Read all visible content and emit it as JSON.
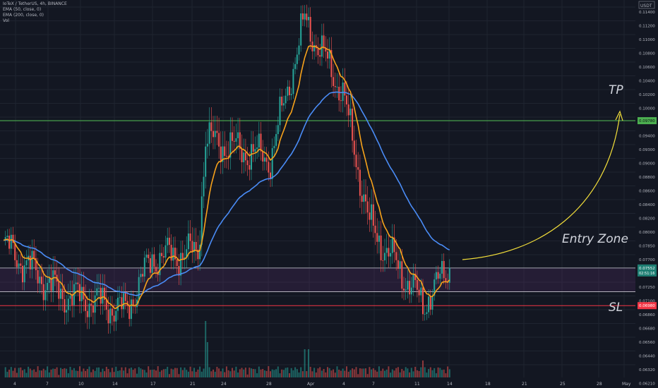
{
  "header": {
    "symbol_line": "IoTeX / TetherUS, 4h, BINANCE",
    "indicators": [
      "EMA (50, close, 0)",
      "EMA (200, close, 0)",
      "Vol"
    ]
  },
  "colors": {
    "background": "#131722",
    "candle_up": "#26a69a",
    "candle_down": "#ef5350",
    "ema50": "#f7a21b",
    "ema200": "#4a8cf6",
    "tp_line": "#4caf50",
    "sl_line": "#f23645",
    "arrow": "#f2de3a"
  },
  "chart_data": {
    "type": "candlestick",
    "title": "IoTeX / TetherUS, 4h, BINANCE",
    "currency": "USDT",
    "y_ticks": [
      "0.11400",
      "0.11200",
      "0.11000",
      "0.10800",
      "0.10600",
      "0.10400",
      "0.10200",
      "0.10000",
      "0.09600",
      "0.09400",
      "0.09300",
      "0.09000",
      "0.08800",
      "0.08600",
      "0.08400",
      "0.08200",
      "0.08000",
      "0.07850",
      "0.07700",
      "0.07400",
      "0.07250",
      "0.07100",
      "0.06860",
      "0.06680",
      "0.06560",
      "0.06440",
      "0.06320",
      "0.06210",
      "0.06105"
    ],
    "x_ticks": [
      "4",
      "7",
      "10",
      "14",
      "17",
      "21",
      "24",
      "28",
      "Apr",
      "4",
      "7",
      "11",
      "14",
      "18",
      "21",
      "25",
      "28",
      "May"
    ],
    "ylim": [
      0.06,
      0.115
    ],
    "price_labels": {
      "tp": "0.09780",
      "current": "0.07552",
      "countdown": "02:51:16",
      "sl": "0.06980"
    },
    "levels": {
      "tp": 0.0978,
      "entry_top": 0.0755,
      "entry_bottom": 0.0719,
      "sl": 0.0698
    },
    "annotations": {
      "tp": "TP",
      "entry": "Entry Zone",
      "sl": "SL"
    },
    "key_points": [
      {
        "x": "4",
        "close": 0.079
      },
      {
        "x": "7",
        "close": 0.0715
      },
      {
        "x": "10",
        "close": 0.0705
      },
      {
        "x": "14",
        "close": 0.069
      },
      {
        "x": "17",
        "close": 0.077
      },
      {
        "x": "21",
        "close": 0.078
      },
      {
        "x": "22",
        "close": 0.095
      },
      {
        "x": "28",
        "close": 0.092
      },
      {
        "x": "Apr",
        "close": 0.113
      },
      {
        "x": "4",
        "close": 0.102
      },
      {
        "x": "7",
        "close": 0.082
      },
      {
        "x": "11",
        "close": 0.07
      },
      {
        "x": "14",
        "close": 0.0755
      }
    ],
    "series": [
      {
        "name": "EMA (50, close, 0)"
      },
      {
        "name": "EMA (200, close, 0)"
      },
      {
        "name": "Vol"
      }
    ],
    "grid": true
  }
}
